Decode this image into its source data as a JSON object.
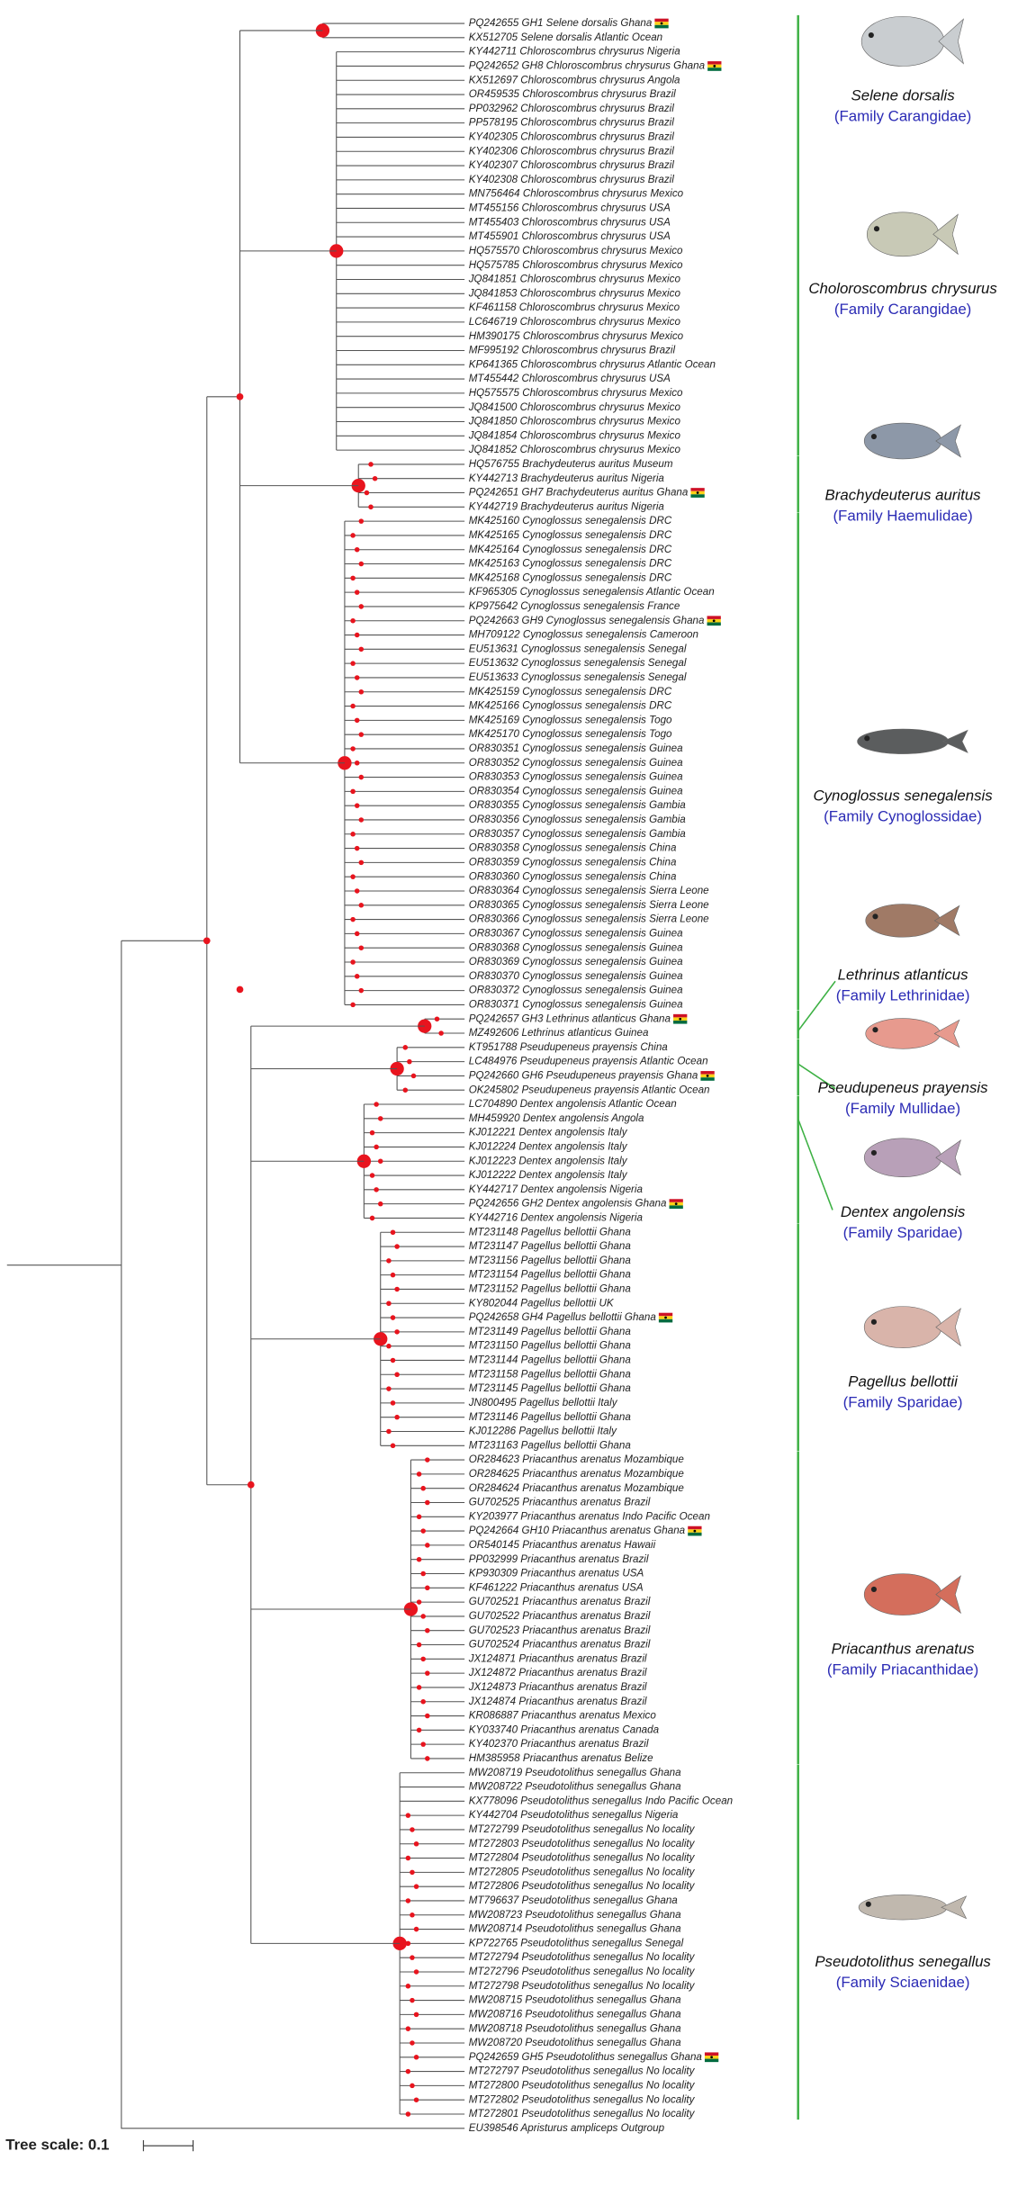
{
  "leaves": [
    {
      "label": "PQ242655 GH1 Selene dorsalis Ghana",
      "flag": true
    },
    {
      "label": "KX512705 Selene dorsalis Atlantic Ocean"
    },
    {
      "label": "KY442711 Chloroscombrus chrysurus Nigeria"
    },
    {
      "label": "PQ242652 GH8 Chloroscombrus chrysurus Ghana",
      "flag": true
    },
    {
      "label": "KX512697 Chloroscombrus chrysurus Angola"
    },
    {
      "label": "OR459535 Chloroscombrus chrysurus Brazil"
    },
    {
      "label": "PP032962 Chloroscombrus chrysurus Brazil"
    },
    {
      "label": "PP578195 Chloroscombrus chrysurus Brazil"
    },
    {
      "label": "KY402305 Chloroscombrus chrysurus Brazil"
    },
    {
      "label": "KY402306 Chloroscombrus chrysurus Brazil"
    },
    {
      "label": "KY402307 Chloroscombrus chrysurus Brazil"
    },
    {
      "label": "KY402308 Chloroscombrus chrysurus Brazil"
    },
    {
      "label": "MN756464 Chloroscombrus chrysurus Mexico"
    },
    {
      "label": "MT455156 Chloroscombrus chrysurus USA"
    },
    {
      "label": "MT455403 Chloroscombrus chrysurus USA"
    },
    {
      "label": "MT455901 Chloroscombrus chrysurus USA"
    },
    {
      "label": "HQ575570 Chloroscombrus chrysurus Mexico"
    },
    {
      "label": "HQ575785 Chloroscombrus chrysurus Mexico"
    },
    {
      "label": "JQ841851 Chloroscombrus chrysurus Mexico"
    },
    {
      "label": "JQ841853 Chloroscombrus chrysurus Mexico"
    },
    {
      "label": "KF461158 Chloroscombrus chrysurus Mexico"
    },
    {
      "label": "LC646719 Chloroscombrus chrysurus Mexico"
    },
    {
      "label": "HM390175 Chloroscombrus chrysurus Mexico"
    },
    {
      "label": "MF995192 Chloroscombrus chrysurus Brazil"
    },
    {
      "label": "KP641365 Chloroscombrus chrysurus Atlantic Ocean"
    },
    {
      "label": "MT455442 Chloroscombrus chrysurus USA"
    },
    {
      "label": "HQ575575 Chloroscombrus chrysurus Mexico"
    },
    {
      "label": "JQ841500 Chloroscombrus chrysurus Mexico"
    },
    {
      "label": "JQ841850 Chloroscombrus chrysurus Mexico"
    },
    {
      "label": "JQ841854 Chloroscombrus chrysurus Mexico"
    },
    {
      "label": "JQ841852 Chloroscombrus chrysurus Mexico"
    },
    {
      "label": "HQ576755 Brachydeuterus auritus Museum"
    },
    {
      "label": "KY442713 Brachydeuterus auritus Nigeria"
    },
    {
      "label": "PQ242651 GH7 Brachydeuterus auritus Ghana",
      "flag": true
    },
    {
      "label": "KY442719 Brachydeuterus auritus Nigeria"
    },
    {
      "label": "MK425160 Cynoglossus senegalensis DRC"
    },
    {
      "label": "MK425165 Cynoglossus senegalensis DRC"
    },
    {
      "label": "MK425164 Cynoglossus senegalensis DRC"
    },
    {
      "label": "MK425163 Cynoglossus senegalensis DRC"
    },
    {
      "label": "MK425168 Cynoglossus senegalensis DRC"
    },
    {
      "label": "KF965305 Cynoglossus senegalensis Atlantic Ocean"
    },
    {
      "label": "KP975642 Cynoglossus senegalensis France"
    },
    {
      "label": "PQ242663 GH9 Cynoglossus senegalensis Ghana",
      "flag": true
    },
    {
      "label": "MH709122 Cynoglossus senegalensis Cameroon"
    },
    {
      "label": "EU513631 Cynoglossus senegalensis Senegal"
    },
    {
      "label": "EU513632 Cynoglossus senegalensis Senegal"
    },
    {
      "label": "EU513633 Cynoglossus senegalensis Senegal"
    },
    {
      "label": "MK425159 Cynoglossus senegalensis DRC"
    },
    {
      "label": "MK425166 Cynoglossus senegalensis DRC"
    },
    {
      "label": "MK425169 Cynoglossus senegalensis Togo"
    },
    {
      "label": "MK425170 Cynoglossus senegalensis Togo"
    },
    {
      "label": "OR830351 Cynoglossus senegalensis Guinea"
    },
    {
      "label": "OR830352 Cynoglossus senegalensis Guinea"
    },
    {
      "label": "OR830353 Cynoglossus senegalensis Guinea"
    },
    {
      "label": "OR830354 Cynoglossus senegalensis Guinea"
    },
    {
      "label": "OR830355 Cynoglossus senegalensis Gambia"
    },
    {
      "label": "OR830356 Cynoglossus senegalensis Gambia"
    },
    {
      "label": "OR830357 Cynoglossus senegalensis Gambia"
    },
    {
      "label": "OR830358 Cynoglossus senegalensis China"
    },
    {
      "label": "OR830359 Cynoglossus senegalensis China"
    },
    {
      "label": "OR830360 Cynoglossus senegalensis China"
    },
    {
      "label": "OR830364 Cynoglossus senegalensis Sierra Leone"
    },
    {
      "label": "OR830365 Cynoglossus senegalensis Sierra Leone"
    },
    {
      "label": "OR830366 Cynoglossus senegalensis Sierra Leone"
    },
    {
      "label": "OR830367 Cynoglossus senegalensis Guinea"
    },
    {
      "label": "OR830368 Cynoglossus senegalensis Guinea"
    },
    {
      "label": "OR830369 Cynoglossus senegalensis Guinea"
    },
    {
      "label": "OR830370 Cynoglossus senegalensis Guinea"
    },
    {
      "label": "OR830372 Cynoglossus senegalensis Guinea"
    },
    {
      "label": "OR830371 Cynoglossus senegalensis Guinea"
    },
    {
      "label": "PQ242657 GH3 Lethrinus atlanticus Ghana",
      "flag": true
    },
    {
      "label": "MZ492606 Lethrinus atlanticus Guinea"
    },
    {
      "label": "KT951788 Pseudupeneus prayensis China"
    },
    {
      "label": "LC484976 Pseudupeneus prayensis Atlantic Ocean"
    },
    {
      "label": "PQ242660 GH6 Pseudupeneus prayensis Ghana",
      "flag": true
    },
    {
      "label": "OK245802 Pseudupeneus prayensis Atlantic Ocean"
    },
    {
      "label": "LC704890 Dentex angolensis Atlantic Ocean"
    },
    {
      "label": "MH459920 Dentex angolensis Angola"
    },
    {
      "label": "KJ012221 Dentex angolensis Italy"
    },
    {
      "label": "KJ012224 Dentex angolensis Italy"
    },
    {
      "label": "KJ012223 Dentex angolensis Italy"
    },
    {
      "label": "KJ012222 Dentex angolensis Italy"
    },
    {
      "label": "KY442717 Dentex angolensis Nigeria"
    },
    {
      "label": "PQ242656 GH2 Dentex angolensis Ghana",
      "flag": true
    },
    {
      "label": "KY442716 Dentex angolensis Nigeria"
    },
    {
      "label": "MT231148 Pagellus bellottii Ghana"
    },
    {
      "label": "MT231147 Pagellus bellottii Ghana"
    },
    {
      "label": "MT231156 Pagellus bellottii Ghana"
    },
    {
      "label": "MT231154 Pagellus bellottii Ghana"
    },
    {
      "label": "MT231152 Pagellus bellottii Ghana"
    },
    {
      "label": "KY802044 Pagellus bellottii UK"
    },
    {
      "label": "PQ242658 GH4 Pagellus bellottii Ghana",
      "flag": true
    },
    {
      "label": "MT231149 Pagellus bellottii Ghana"
    },
    {
      "label": "MT231150 Pagellus bellottii Ghana"
    },
    {
      "label": "MT231144 Pagellus bellottii Ghana"
    },
    {
      "label": "MT231158 Pagellus bellottii Ghana"
    },
    {
      "label": "MT231145 Pagellus bellottii Ghana"
    },
    {
      "label": "JN800495 Pagellus bellottii Italy"
    },
    {
      "label": "MT231146 Pagellus bellottii Ghana"
    },
    {
      "label": "KJ012286 Pagellus bellottii Italy"
    },
    {
      "label": "MT231163 Pagellus bellottii Ghana"
    },
    {
      "label": "OR284623 Priacanthus arenatus Mozambique"
    },
    {
      "label": "OR284625 Priacanthus arenatus Mozambique"
    },
    {
      "label": "OR284624 Priacanthus arenatus Mozambique"
    },
    {
      "label": "GU702525 Priacanthus arenatus Brazil"
    },
    {
      "label": "KY203977 Priacanthus arenatus Indo Pacific Ocean"
    },
    {
      "label": "PQ242664 GH10 Priacanthus arenatus Ghana",
      "flag": true
    },
    {
      "label": "OR540145 Priacanthus arenatus Hawaii"
    },
    {
      "label": "PP032999 Priacanthus arenatus Brazil"
    },
    {
      "label": "KP930309 Priacanthus arenatus USA"
    },
    {
      "label": "KF461222 Priacanthus arenatus USA"
    },
    {
      "label": "GU702521 Priacanthus arenatus Brazil"
    },
    {
      "label": "GU702522 Priacanthus arenatus Brazil"
    },
    {
      "label": "GU702523 Priacanthus arenatus Brazil"
    },
    {
      "label": "GU702524 Priacanthus arenatus Brazil"
    },
    {
      "label": "JX124871 Priacanthus arenatus Brazil"
    },
    {
      "label": "JX124872 Priacanthus arenatus Brazil"
    },
    {
      "label": "JX124873 Priacanthus arenatus Brazil"
    },
    {
      "label": "JX124874 Priacanthus arenatus Brazil"
    },
    {
      "label": "KR086887 Priacanthus arenatus Mexico"
    },
    {
      "label": "KY033740 Priacanthus arenatus Canada"
    },
    {
      "label": "KY402370 Priacanthus arenatus Brazil"
    },
    {
      "label": "HM385958 Priacanthus arenatus Belize"
    },
    {
      "label": "MW208719 Pseudotolithus senegallus Ghana"
    },
    {
      "label": "MW208722 Pseudotolithus senegallus Ghana"
    },
    {
      "label": "KX778096 Pseudotolithus senegallus Indo Pacific Ocean"
    },
    {
      "label": "KY442704 Pseudotolithus senegallus Nigeria"
    },
    {
      "label": "MT272799 Pseudotolithus senegallus No locality"
    },
    {
      "label": "MT272803 Pseudotolithus senegallus No locality"
    },
    {
      "label": "MT272804 Pseudotolithus senegallus No locality"
    },
    {
      "label": "MT272805 Pseudotolithus senegallus No locality"
    },
    {
      "label": "MT272806 Pseudotolithus senegallus No locality"
    },
    {
      "label": "MT796637 Pseudotolithus senegallus Ghana"
    },
    {
      "label": "MW208723 Pseudotolithus senegallus Ghana"
    },
    {
      "label": "MW208714 Pseudotolithus senegallus Ghana"
    },
    {
      "label": "KP722765 Pseudotolithus senegallus Senegal"
    },
    {
      "label": "MT272794 Pseudotolithus senegallus No locality"
    },
    {
      "label": "MT272796 Pseudotolithus senegallus No locality"
    },
    {
      "label": "MT272798 Pseudotolithus senegallus No locality"
    },
    {
      "label": "MW208715 Pseudotolithus senegallus Ghana"
    },
    {
      "label": "MW208716 Pseudotolithus senegallus Ghana"
    },
    {
      "label": "MW208718 Pseudotolithus senegallus Ghana"
    },
    {
      "label": "MW208720 Pseudotolithus senegallus Ghana"
    },
    {
      "label": "PQ242659 GH5 Pseudotolithus senegallus Ghana",
      "flag": true
    },
    {
      "label": "MT272797 Pseudotolithus senegallus No locality"
    },
    {
      "label": "MT272800 Pseudotolithus senegallus No locality"
    },
    {
      "label": "MT272802 Pseudotolithus senegallus No locality"
    },
    {
      "label": "MT272801 Pseudotolithus senegallus No locality"
    },
    {
      "label": "EU398546 Apristurus ampliceps Outgroup"
    }
  ],
  "species": [
    {
      "name": "Selene dorsalis",
      "family": "(Family Carangidae)"
    },
    {
      "name": "Choloroscombrus chrysurus",
      "family": "(Family Carangidae)"
    },
    {
      "name": "Brachydeuterus auritus",
      "family": "(Family Haemulidae)"
    },
    {
      "name": "Cynoglossus senegalensis",
      "family": "(Family Cynoglossidae)"
    },
    {
      "name": "Lethrinus atlanticus",
      "family": "(Family Lethrinidae)"
    },
    {
      "name": "Pseudupeneus prayensis",
      "family": "(Family Mullidae)"
    },
    {
      "name": "Dentex angolensis",
      "family": "(Family Sparidae)"
    },
    {
      "name": "Pagellus bellottii",
      "family": "(Family Sparidae)"
    },
    {
      "name": "Priacanthus arenatus",
      "family": "(Family Priacanthidae)"
    },
    {
      "name": "Pseudotolithus senegallus",
      "family": "(Family Sciaenidae)"
    }
  ],
  "scale": {
    "label": "Tree scale: 0.1"
  }
}
